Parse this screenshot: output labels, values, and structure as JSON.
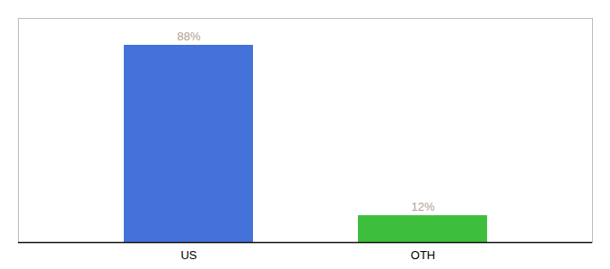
{
  "chart_data": {
    "type": "bar",
    "categories": [
      "US",
      "OTH"
    ],
    "values": [
      88,
      12
    ],
    "value_labels": [
      "88%",
      "12%"
    ],
    "colors": [
      "#4472db",
      "#3dbf3d"
    ],
    "ylim": [
      0,
      100
    ],
    "data_labels": true,
    "tick_labels": "x",
    "grid": false
  }
}
